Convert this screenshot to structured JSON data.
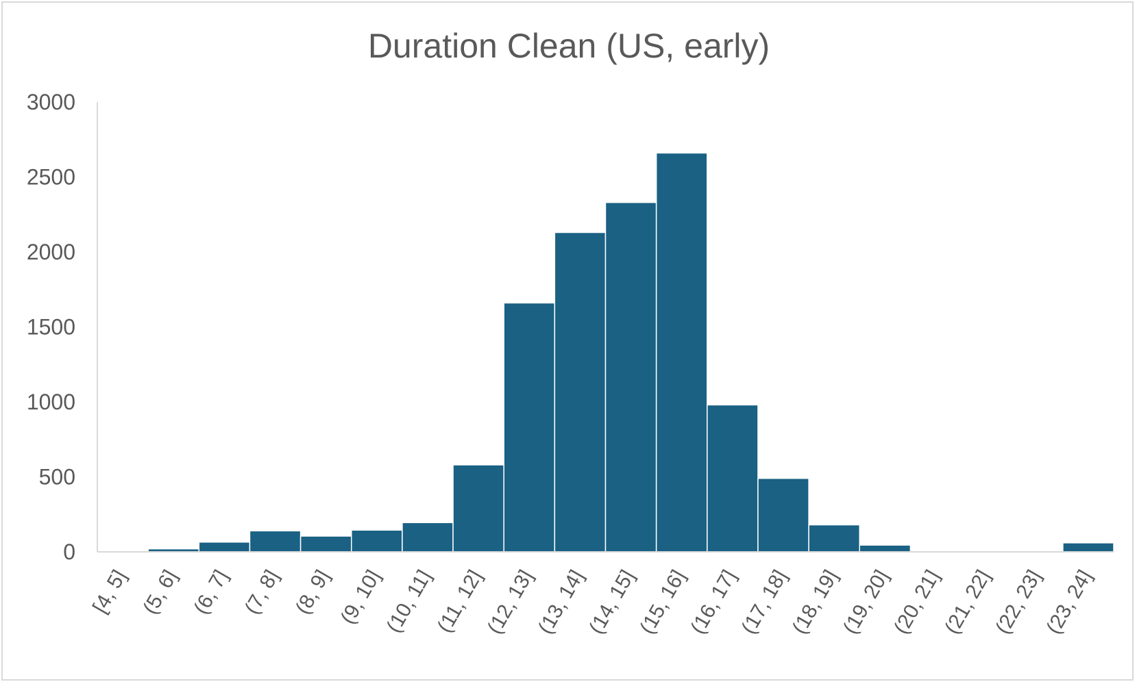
{
  "chart_data": {
    "type": "bar",
    "title": "Duration Clean (US, early)",
    "xlabel": "",
    "ylabel": "",
    "categories": [
      "[4, 5]",
      "(5, 6]",
      "(6, 7]",
      "(7, 8]",
      "(8, 9]",
      "(9, 10]",
      "(10, 11]",
      "(11, 12]",
      "(12, 13]",
      "(13, 14]",
      "(14, 15]",
      "(15, 16]",
      "(16, 17]",
      "(17, 18]",
      "(18, 19]",
      "(19, 20]",
      "(20, 21]",
      "(21, 22]",
      "(22, 23]",
      "(23, 24]"
    ],
    "values": [
      0,
      20,
      65,
      140,
      105,
      145,
      195,
      580,
      1660,
      2130,
      2330,
      2660,
      980,
      490,
      180,
      45,
      0,
      0,
      0,
      60
    ],
    "ylim": [
      0,
      3000
    ],
    "yticks": [
      "0",
      "500",
      "1000",
      "1500",
      "2000",
      "2500",
      "3000"
    ],
    "bar_color": "#1a6184",
    "bar_gap": "none (histogram)",
    "grid": false,
    "legend": "none"
  }
}
